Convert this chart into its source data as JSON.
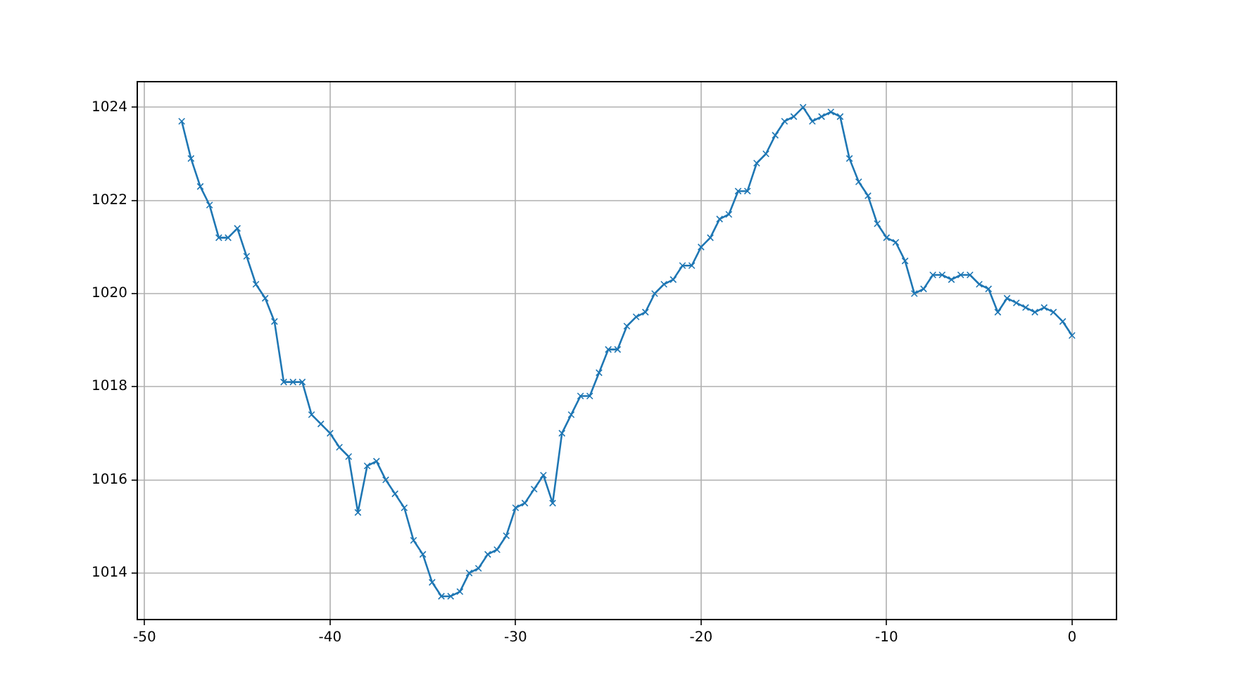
{
  "chart_data": {
    "type": "line",
    "x": [
      -48,
      -47.5,
      -47,
      -46.5,
      -46,
      -45.5,
      -45,
      -44.5,
      -44,
      -43.5,
      -43,
      -42.5,
      -42,
      -41.5,
      -41,
      -40.5,
      -40,
      -39.5,
      -39,
      -38.5,
      -38,
      -37.5,
      -37,
      -36.5,
      -36,
      -35.5,
      -35,
      -34.5,
      -34,
      -33.5,
      -33,
      -32.5,
      -32,
      -31.5,
      -31,
      -30.5,
      -30,
      -29.5,
      -29,
      -28.5,
      -28,
      -27.5,
      -27,
      -26.5,
      -26,
      -25.5,
      -25,
      -24.5,
      -24,
      -23.5,
      -23,
      -22.5,
      -22,
      -21.5,
      -21,
      -20.5,
      -20,
      -19.5,
      -19,
      -18.5,
      -18,
      -17.5,
      -17,
      -16.5,
      -16,
      -15.5,
      -15,
      -14.5,
      -14,
      -13.5,
      -13,
      -12.5,
      -12,
      -11.5,
      -11,
      -10.5,
      -10,
      -9.5,
      -9,
      -8.5,
      -8,
      -7.5,
      -7,
      -6.5,
      -6,
      -5.5,
      -5,
      -4.5,
      -4,
      -3.5,
      -3,
      -2.5,
      -2,
      -1.5,
      -1,
      -0.5,
      0
    ],
    "series": [
      {
        "color": "#1f77b4",
        "values": [
          1023.7,
          1022.9,
          1022.3,
          1021.9,
          1021.2,
          1021.2,
          1021.4,
          1020.8,
          1020.2,
          1019.9,
          1019.4,
          1018.1,
          1018.1,
          1018.1,
          1017.4,
          1017.2,
          1017.0,
          1016.7,
          1016.5,
          1015.3,
          1016.3,
          1016.4,
          1016.0,
          1015.7,
          1015.4,
          1014.7,
          1014.4,
          1013.8,
          1013.5,
          1013.5,
          1013.6,
          1014.0,
          1014.1,
          1014.4,
          1014.5,
          1014.8,
          1015.4,
          1015.5,
          1015.8,
          1016.1,
          1015.5,
          1017.0,
          1017.4,
          1017.8,
          1017.8,
          1018.3,
          1018.8,
          1018.8,
          1019.3,
          1019.5,
          1019.6,
          1020.0,
          1020.2,
          1020.3,
          1020.6,
          1020.6,
          1021.0,
          1021.2,
          1021.6,
          1021.7,
          1022.2,
          1022.2,
          1022.8,
          1023.0,
          1023.4,
          1023.7,
          1023.8,
          1024.0,
          1023.7,
          1023.8,
          1023.9,
          1023.8,
          1022.9,
          1022.4,
          1022.1,
          1021.5,
          1021.2,
          1021.1,
          1020.7,
          1020.0,
          1020.1,
          1020.4,
          1020.4,
          1020.3,
          1020.4,
          1020.4,
          1020.2,
          1020.1,
          1019.6,
          1019.9,
          1019.8,
          1019.7,
          1019.6,
          1019.7,
          1019.6,
          1019.4,
          1019.1
        ]
      }
    ],
    "xlim": [
      -50.4,
      2.4
    ],
    "xticks": [
      -50,
      -40,
      -30,
      -20,
      -10,
      0
    ],
    "ylim": [
      1013.0,
      1024.55
    ],
    "yticks": [
      1014,
      1016,
      1018,
      1020,
      1022,
      1024
    ],
    "grid": true,
    "legend": false,
    "marker": "cross",
    "line_style": "solid"
  }
}
